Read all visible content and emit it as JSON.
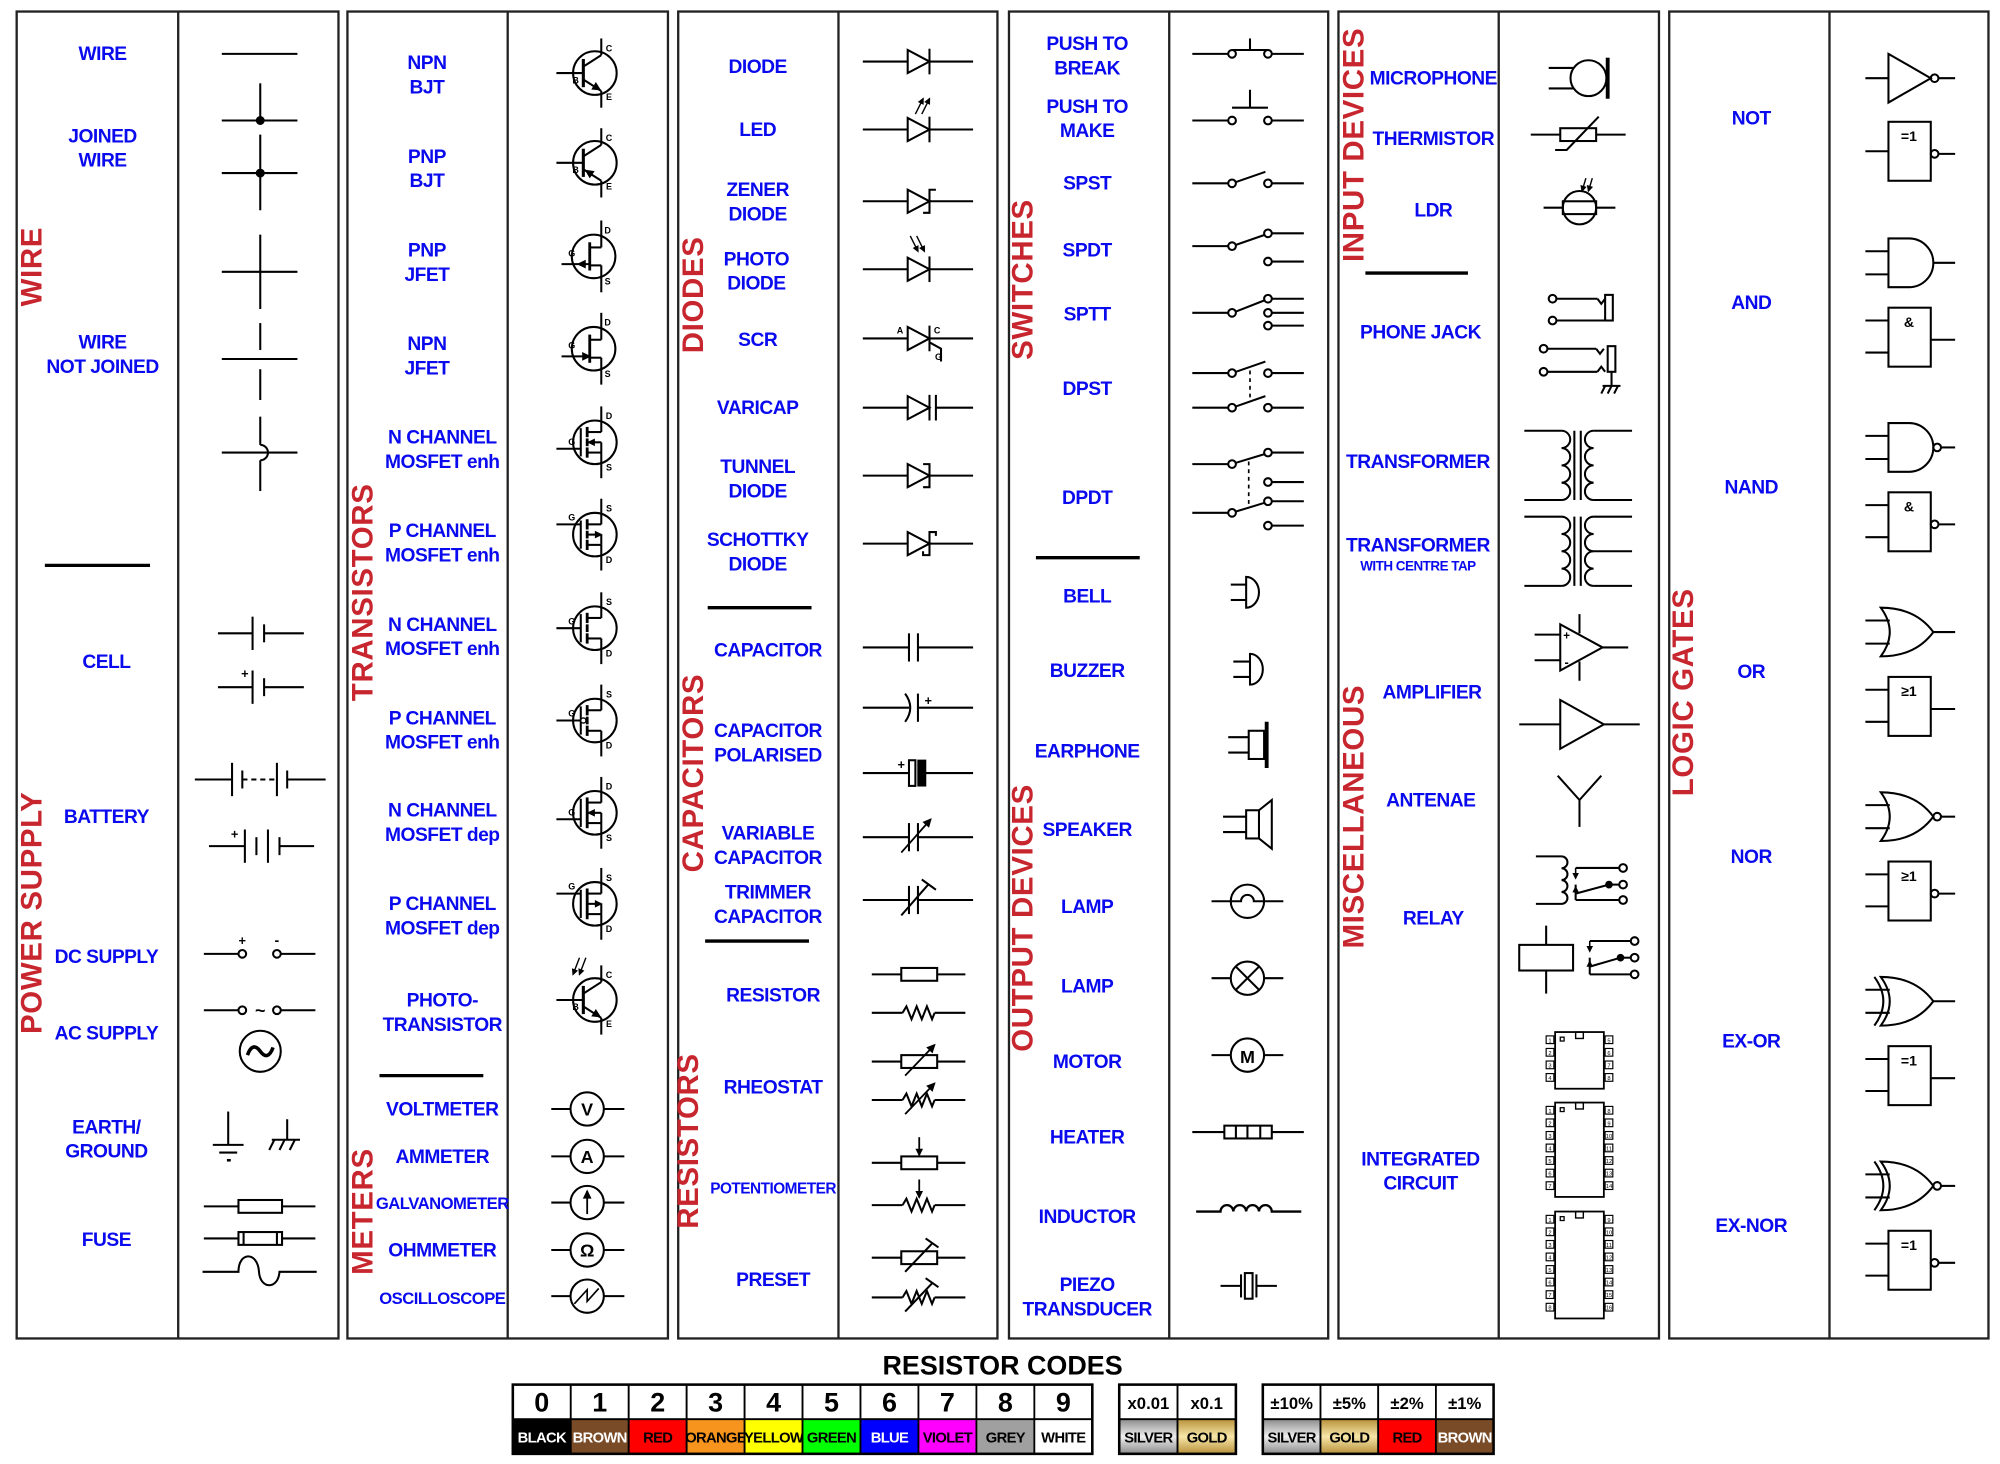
{
  "categories": {
    "wire": "WIRE",
    "power_supply": "POWER SUPPLY",
    "transistors": "TRANSISTORS",
    "meters": "METERS",
    "diodes": "DIODES",
    "capacitors": "CAPACITORS",
    "resistors": "RESISTORS",
    "switches": "SWITCHES",
    "output_devices": "OUTPUT DEVICES",
    "input_devices": "INPUT DEVICES",
    "miscellaneous": "MISCELLANEOUS",
    "logic_gates": "LOGIC GATES"
  },
  "labels": {
    "wire": [
      "WIRE"
    ],
    "joined_wire": [
      "JOINED",
      "WIRE"
    ],
    "wire_not_joined": [
      "WIRE",
      "NOT JOINED"
    ],
    "cell": [
      "CELL"
    ],
    "battery": [
      "BATTERY"
    ],
    "dc_supply": [
      "DC SUPPLY"
    ],
    "ac_supply": [
      "AC SUPPLY"
    ],
    "earth_ground": [
      "EARTH/",
      "GROUND"
    ],
    "fuse": [
      "FUSE"
    ],
    "npn_bjt": [
      "NPN",
      "BJT"
    ],
    "pnp_bjt": [
      "PNP",
      "BJT"
    ],
    "pnp_jfet": [
      "PNP",
      "JFET"
    ],
    "npn_jfet": [
      "NPN",
      "JFET"
    ],
    "n_mosfet_enh_1": [
      "N CHANNEL",
      "MOSFET enh"
    ],
    "p_mosfet_enh_1": [
      "P CHANNEL",
      "MOSFET enh"
    ],
    "n_mosfet_enh_2": [
      "N CHANNEL",
      "MOSFET enh"
    ],
    "p_mosfet_enh_2": [
      "P CHANNEL",
      "MOSFET enh"
    ],
    "n_mosfet_dep": [
      "N CHANNEL",
      "MOSFET dep"
    ],
    "p_mosfet_dep": [
      "P CHANNEL",
      "MOSFET dep"
    ],
    "phototransistor": [
      "PHOTO-",
      "TRANSISTOR"
    ],
    "voltmeter": [
      "VOLTMETER"
    ],
    "ammeter": [
      "AMMETER"
    ],
    "galvanometer": [
      "GALVANOMETER"
    ],
    "ohmmeter": [
      "OHMMETER"
    ],
    "oscilloscope": [
      "OSCILLOSCOPE"
    ],
    "diode": [
      "DIODE"
    ],
    "led": [
      "LED"
    ],
    "zener_diode": [
      "ZENER",
      "DIODE"
    ],
    "photo_diode": [
      "PHOTO",
      "DIODE"
    ],
    "scr": [
      "SCR"
    ],
    "varicap": [
      "VARICAP"
    ],
    "tunnel_diode": [
      "TUNNEL",
      "DIODE"
    ],
    "schottky_diode": [
      "SCHOTTKY",
      "DIODE"
    ],
    "capacitor": [
      "CAPACITOR"
    ],
    "capacitor_polarised": [
      "CAPACITOR",
      "POLARISED"
    ],
    "variable_capacitor": [
      "VARIABLE",
      "CAPACITOR"
    ],
    "trimmer_capacitor": [
      "TRIMMER",
      "CAPACITOR"
    ],
    "resistor": [
      "RESISTOR"
    ],
    "rheostat": [
      "RHEOSTAT"
    ],
    "potentiometer": [
      "POTENTIOMETER"
    ],
    "preset": [
      "PRESET"
    ],
    "push_to_break": [
      "PUSH TO",
      "BREAK"
    ],
    "push_to_make": [
      "PUSH TO",
      "MAKE"
    ],
    "spst": [
      "SPST"
    ],
    "spdt": [
      "SPDT"
    ],
    "sptt": [
      "SPTT"
    ],
    "dpst": [
      "DPST"
    ],
    "dpdt": [
      "DPDT"
    ],
    "bell": [
      "BELL"
    ],
    "buzzer": [
      "BUZZER"
    ],
    "earphone": [
      "EARPHONE"
    ],
    "speaker": [
      "SPEAKER"
    ],
    "lamp_1": [
      "LAMP"
    ],
    "lamp_2": [
      "LAMP"
    ],
    "motor": [
      "MOTOR"
    ],
    "heater": [
      "HEATER"
    ],
    "inductor": [
      "INDUCTOR"
    ],
    "piezo_transducer": [
      "PIEZO",
      "TRANSDUCER"
    ],
    "microphone": [
      "MICROPHONE"
    ],
    "thermistor": [
      "THERMISTOR"
    ],
    "ldr": [
      "LDR"
    ],
    "phone_jack": [
      "PHONE JACK"
    ],
    "transformer": [
      "TRANSFORMER"
    ],
    "transformer_ct": [
      "TRANSFORMER"
    ],
    "transformer_ct_sub": [
      "WITH CENTRE TAP"
    ],
    "amplifier": [
      "AMPLIFIER"
    ],
    "antenae": [
      "ANTENAE"
    ],
    "relay": [
      "RELAY"
    ],
    "integrated_circuit": [
      "INTEGRATED",
      "CIRCUIT"
    ],
    "not": [
      "NOT"
    ],
    "and": [
      "AND"
    ],
    "nand": [
      "NAND"
    ],
    "or": [
      "OR"
    ],
    "nor": [
      "NOR"
    ],
    "ex_or": [
      "EX-OR"
    ],
    "ex_nor": [
      "EX-NOR"
    ]
  },
  "pins": {
    "b": "B",
    "c": "C",
    "e": "E",
    "g": "G",
    "d": "D",
    "s": "S",
    "a": "A",
    "plus": "+",
    "minus": "-",
    "tilde": "~"
  },
  "meter_marks": {
    "volt": "V",
    "amp": "A",
    "ohm": "Ω",
    "motor": "M"
  },
  "gate_marks": {
    "not": "=1",
    "and": "&",
    "or": "≥1",
    "xor": "=1"
  },
  "ic_pin_counts": [
    8,
    14,
    16
  ],
  "colors": {
    "label": "#0a0aef",
    "category": "#c8262e",
    "line": "#000000"
  },
  "resistor_codes": {
    "title": "RESISTOR CODES",
    "digits": [
      {
        "value": "0",
        "name": "BLACK",
        "color": "#000000",
        "text": "#ffffff"
      },
      {
        "value": "1",
        "name": "BROWN",
        "color": "#7a4b27",
        "text": "#ffffff"
      },
      {
        "value": "2",
        "name": "RED",
        "color": "#ff0000",
        "text": "#000000"
      },
      {
        "value": "3",
        "name": "ORANGE",
        "color": "#f7941d",
        "text": "#000000"
      },
      {
        "value": "4",
        "name": "YELLOW",
        "color": "#ffff00",
        "text": "#000000"
      },
      {
        "value": "5",
        "name": "GREEN",
        "color": "#00ff00",
        "text": "#000000"
      },
      {
        "value": "6",
        "name": "BLUE",
        "color": "#0000ff",
        "text": "#ffffff"
      },
      {
        "value": "7",
        "name": "VIOLET",
        "color": "#ff00ff",
        "text": "#000000"
      },
      {
        "value": "8",
        "name": "GREY",
        "color": "#a0a0a0",
        "text": "#000000"
      },
      {
        "value": "9",
        "name": "WHITE",
        "color": "#ffffff",
        "text": "#000000"
      }
    ],
    "multipliers": [
      {
        "value": "x0.01",
        "name": "SILVER",
        "color": "silver",
        "text": "#000000"
      },
      {
        "value": "x0.1",
        "name": "GOLD",
        "color": "gold",
        "text": "#000000"
      }
    ],
    "tolerances": [
      {
        "value": "±10%",
        "name": "SILVER",
        "color": "silver",
        "text": "#000000"
      },
      {
        "value": "±5%",
        "name": "GOLD",
        "color": "gold",
        "text": "#000000"
      },
      {
        "value": "±2%",
        "name": "RED",
        "color": "#ff0000",
        "text": "#000000"
      },
      {
        "value": "±1%",
        "name": "BROWN",
        "color": "#7a4b27",
        "text": "#ffffff"
      }
    ]
  }
}
